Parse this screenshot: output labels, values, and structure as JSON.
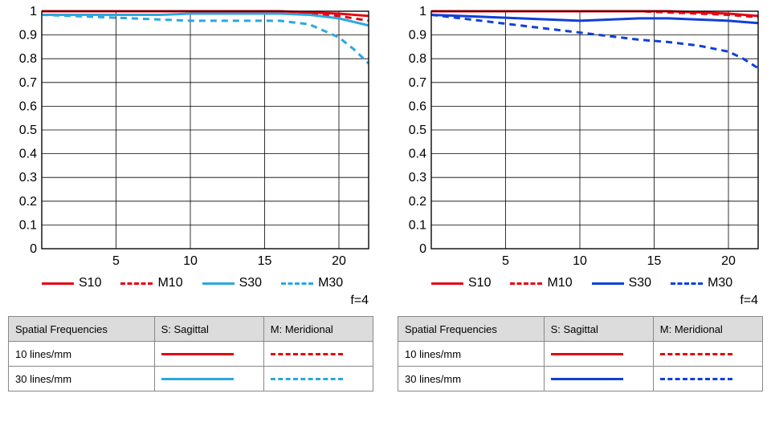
{
  "shared": {
    "chart": {
      "type": "line",
      "xlim": [
        0,
        22
      ],
      "ylim": [
        0,
        1
      ],
      "xticks": [
        5,
        10,
        15,
        20
      ],
      "yticks": [
        0,
        0.1,
        0.2,
        0.3,
        0.4,
        0.5,
        0.6,
        0.7,
        0.8,
        0.9,
        1
      ],
      "ytick_labels": [
        "0",
        "0.1",
        "0.2",
        "0.3",
        "0.4",
        "0.5",
        "0.6",
        "0.7",
        "0.8",
        "0.9",
        "1"
      ],
      "grid_color": "#000000",
      "grid_width": 1,
      "border_color": "#000000",
      "axis_fontsize": 16,
      "background_color": "#ffffff",
      "line_width": 3,
      "dash_pattern": "8,6"
    },
    "legend": {
      "items": [
        {
          "label": "S10",
          "color": "#e30613",
          "dashed": false
        },
        {
          "label": "M10",
          "color": "#e30613",
          "dashed": true
        },
        {
          "label": "S30",
          "color_left": "#2aa8e0",
          "color_right": "#1040d8",
          "dashed": false
        },
        {
          "label": "M30",
          "color_left": "#2aa8e0",
          "color_right": "#1040d8",
          "dashed": true
        }
      ]
    },
    "f_label": "f=4",
    "table": {
      "headers": [
        "Spatial Frequencies",
        "S: Sagittal",
        "M: Meridional"
      ],
      "rows": [
        {
          "label": "10 lines/mm",
          "color": "#e30613"
        },
        {
          "label": "30 lines/mm",
          "color_left": "#2aa8e0",
          "color_right": "#1040d8"
        }
      ],
      "col_widths": [
        "40%",
        "30%",
        "30%"
      ]
    }
  },
  "left": {
    "colors": {
      "red": "#e30613",
      "blue": "#2aa8e0"
    },
    "series": {
      "S10": {
        "color": "#e30613",
        "dashed": false,
        "x": [
          0,
          2,
          4,
          6,
          8,
          10,
          12,
          14,
          16,
          18,
          20,
          21,
          22
        ],
        "y": [
          1.0,
          1.0,
          1.0,
          1.0,
          1.0,
          1.0,
          1.0,
          1.0,
          1.0,
          0.995,
          0.99,
          0.985,
          0.98
        ]
      },
      "M10": {
        "color": "#e30613",
        "dashed": true,
        "x": [
          0,
          2,
          4,
          6,
          8,
          10,
          12,
          14,
          16,
          18,
          20,
          21,
          22
        ],
        "y": [
          1.0,
          1.0,
          1.0,
          1.0,
          1.0,
          1.0,
          1.0,
          1.0,
          0.995,
          0.99,
          0.98,
          0.97,
          0.96
        ]
      },
      "S30": {
        "color": "#2aa8e0",
        "dashed": false,
        "x": [
          0,
          2,
          4,
          6,
          8,
          10,
          12,
          14,
          16,
          18,
          20,
          21,
          22
        ],
        "y": [
          0.985,
          0.985,
          0.985,
          0.985,
          0.985,
          0.99,
          0.99,
          0.99,
          0.99,
          0.985,
          0.97,
          0.955,
          0.94
        ]
      },
      "M30": {
        "color": "#2aa8e0",
        "dashed": true,
        "x": [
          0,
          2,
          4,
          6,
          8,
          10,
          12,
          14,
          16,
          18,
          20,
          21,
          22
        ],
        "y": [
          0.985,
          0.98,
          0.975,
          0.97,
          0.965,
          0.96,
          0.96,
          0.96,
          0.96,
          0.945,
          0.89,
          0.84,
          0.78
        ]
      }
    }
  },
  "right": {
    "colors": {
      "red": "#e30613",
      "blue": "#1040d8"
    },
    "series": {
      "S10": {
        "color": "#e30613",
        "dashed": false,
        "x": [
          0,
          2,
          4,
          6,
          8,
          10,
          12,
          14,
          16,
          18,
          20,
          21,
          22
        ],
        "y": [
          1.0,
          1.0,
          1.0,
          1.0,
          1.0,
          1.0,
          1.0,
          1.0,
          1.0,
          0.995,
          0.99,
          0.985,
          0.98
        ]
      },
      "M10": {
        "color": "#e30613",
        "dashed": true,
        "x": [
          0,
          2,
          4,
          6,
          8,
          10,
          12,
          14,
          16,
          18,
          20,
          21,
          22
        ],
        "y": [
          1.0,
          1.0,
          1.0,
          1.0,
          1.0,
          1.0,
          1.0,
          1.0,
          0.995,
          0.99,
          0.985,
          0.98,
          0.975
        ]
      },
      "S30": {
        "color": "#1040d8",
        "dashed": false,
        "x": [
          0,
          2,
          4,
          6,
          8,
          10,
          12,
          14,
          16,
          18,
          20,
          21,
          22
        ],
        "y": [
          0.985,
          0.98,
          0.975,
          0.97,
          0.965,
          0.96,
          0.965,
          0.97,
          0.97,
          0.965,
          0.96,
          0.955,
          0.95
        ]
      },
      "M30": {
        "color": "#1040d8",
        "dashed": true,
        "x": [
          0,
          2,
          4,
          6,
          8,
          10,
          12,
          14,
          16,
          18,
          20,
          21,
          22
        ],
        "y": [
          0.985,
          0.97,
          0.955,
          0.94,
          0.925,
          0.91,
          0.895,
          0.88,
          0.87,
          0.855,
          0.83,
          0.8,
          0.76
        ]
      }
    }
  }
}
